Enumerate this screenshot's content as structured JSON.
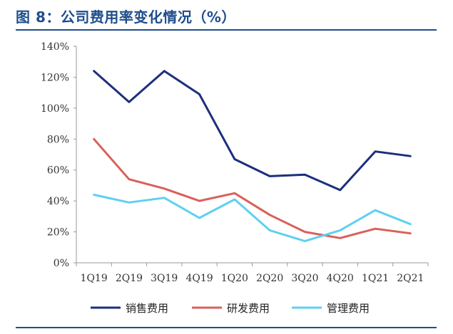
{
  "title": "图 8：公司费用率变化情况（%）",
  "chart_data": {
    "type": "line",
    "categories": [
      "1Q19",
      "2Q19",
      "3Q19",
      "4Q19",
      "1Q20",
      "2Q20",
      "3Q20",
      "4Q20",
      "1Q21",
      "2Q21"
    ],
    "ylim": [
      0,
      140
    ],
    "yticks": [
      0,
      20,
      40,
      60,
      80,
      100,
      120,
      140
    ],
    "ytick_labels": [
      "0%",
      "20%",
      "40%",
      "60%",
      "80%",
      "100%",
      "120%",
      "140%"
    ],
    "grid": false,
    "legend_position": "bottom",
    "series": [
      {
        "name": "销售费用",
        "color": "#1b2f7d",
        "values": [
          124,
          104,
          124,
          109,
          67,
          56,
          57,
          47,
          72,
          69
        ]
      },
      {
        "name": "研发费用",
        "color": "#d9605a",
        "values": [
          80,
          54,
          48,
          40,
          45,
          31,
          20,
          16,
          22,
          19
        ]
      },
      {
        "name": "管理费用",
        "color": "#5fd0f0",
        "values": [
          44,
          39,
          42,
          29,
          41,
          21,
          14,
          21,
          34,
          25
        ]
      }
    ]
  }
}
